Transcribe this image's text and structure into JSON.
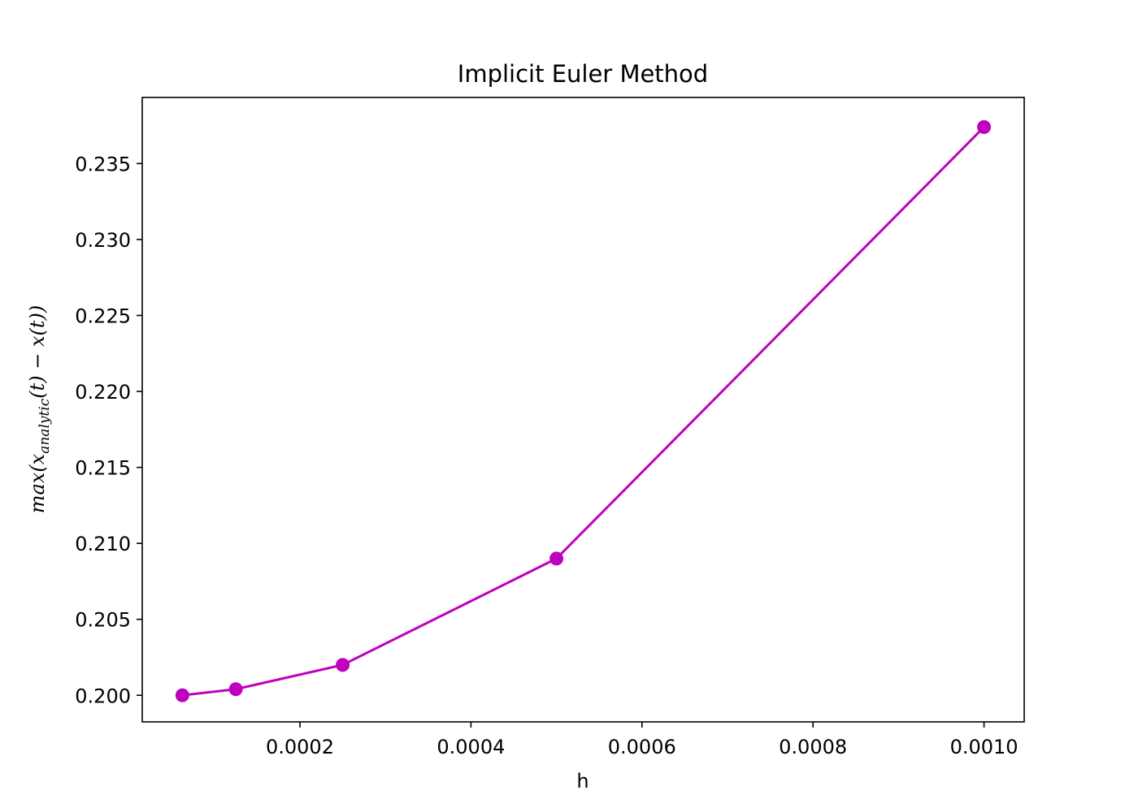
{
  "chart_data": {
    "type": "line",
    "title": "Implicit Euler Method",
    "xlabel": "h",
    "ylabel": {
      "prefix": "max(x",
      "subscript": "analytic",
      "suffix": "(t) − x(t))"
    },
    "x": [
      6.25e-05,
      0.000125,
      0.00025,
      0.0005,
      0.001
    ],
    "series": [
      {
        "values": [
          0.2,
          0.2004,
          0.202,
          0.209,
          0.2374
        ]
      }
    ],
    "xlim": [
      1.56e-05,
      0.001047
    ],
    "ylim": [
      0.19825,
      0.23935
    ],
    "x_ticks": [
      0.0002,
      0.0004,
      0.0006,
      0.0008,
      0.001
    ],
    "x_tick_labels": [
      "0.0002",
      "0.0004",
      "0.0006",
      "0.0008",
      "0.0010"
    ],
    "y_ticks": [
      0.2,
      0.205,
      0.21,
      0.215,
      0.22,
      0.225,
      0.23,
      0.235
    ],
    "y_tick_labels": [
      "0.200",
      "0.205",
      "0.210",
      "0.215",
      "0.220",
      "0.225",
      "0.230",
      "0.235"
    ],
    "color": "#bf00bf",
    "marker": "circle",
    "grid": false,
    "legend": false
  }
}
